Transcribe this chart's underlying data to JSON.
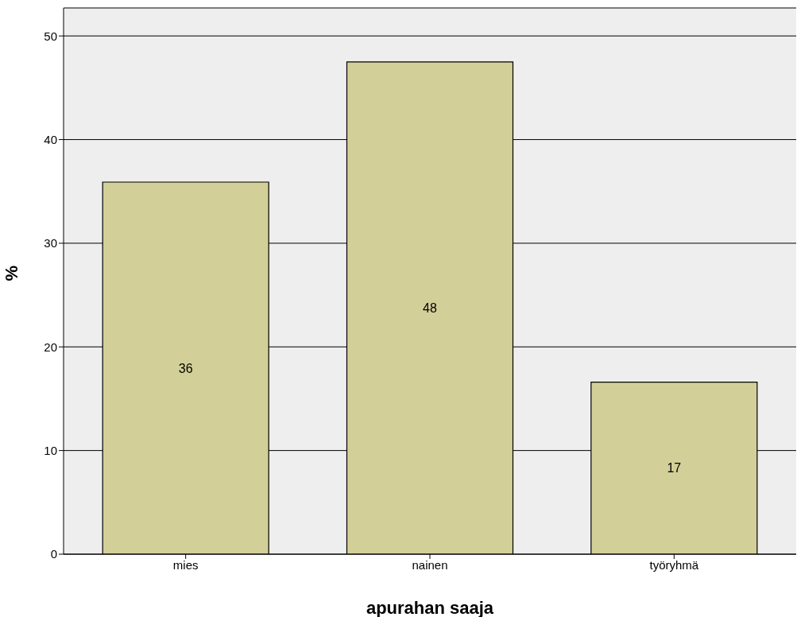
{
  "chart_data": {
    "type": "bar",
    "xlabel": "apurahan saaja",
    "ylabel": "%",
    "categories": [
      "mies",
      "nainen",
      "työryhmä"
    ],
    "values": [
      35.9,
      47.5,
      16.6
    ],
    "value_labels": [
      "36",
      "48",
      "17"
    ],
    "color": "#d3cf98",
    "ylim": [
      0,
      52.7
    ],
    "yticks": [
      0,
      10,
      20,
      30,
      40,
      50
    ],
    "grid": "y"
  }
}
